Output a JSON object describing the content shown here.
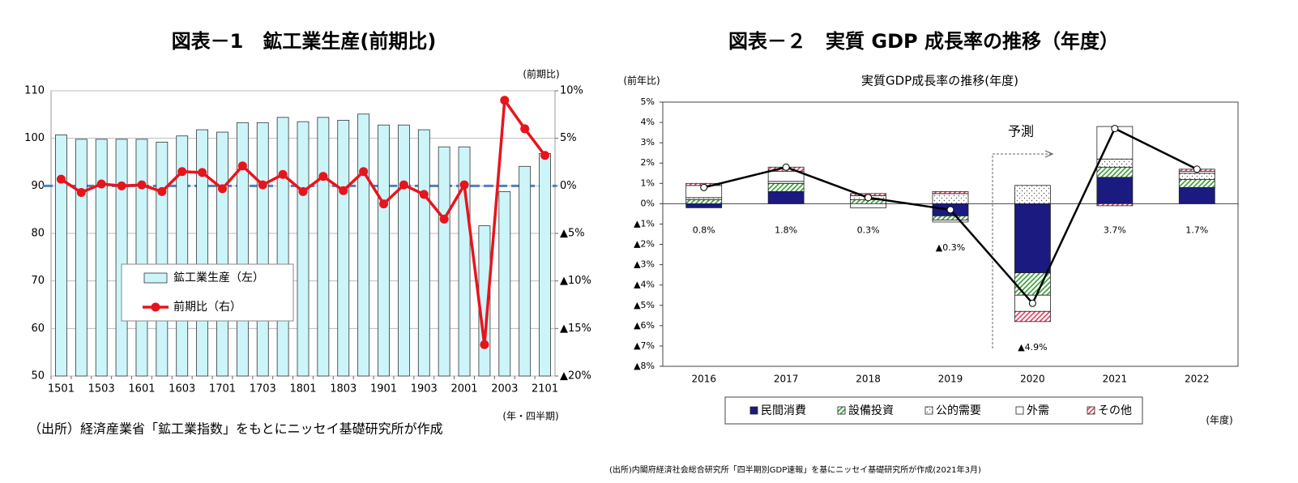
{
  "chart_data": [
    {
      "type": "combo",
      "title": "図表－1　鉱工業生産(前期比)",
      "y2_label": "(前期比)",
      "x_label": "(年・四半期)",
      "source": "（出所）経済産業省「鉱工業指数」をもとにニッセイ基礎研究所が作成",
      "categories": [
        "1501",
        null,
        "1503",
        null,
        "1601",
        null,
        "1603",
        null,
        "1701",
        null,
        "1703",
        null,
        "1801",
        null,
        "1803",
        null,
        "1901",
        null,
        "1903",
        null,
        "2001",
        null,
        "2003",
        null,
        "2101"
      ],
      "series": [
        {
          "name": "鉱工業生産（左）",
          "type": "bar",
          "color": "#ccf5fa",
          "values": [
            100.7,
            99.8,
            99.8,
            99.8,
            99.8,
            99.2,
            100.5,
            101.8,
            101.3,
            103.3,
            103.3,
            104.4,
            103.5,
            104.4,
            103.8,
            105.1,
            102.8,
            102.8,
            101.8,
            98.2,
            98.2,
            81.6,
            88.8,
            94.1,
            96.8
          ]
        },
        {
          "name": "前期比（右）",
          "type": "line",
          "axis": "y2",
          "color": "#e8141c",
          "values": [
            0.7,
            -0.7,
            0.2,
            0.0,
            0.1,
            -0.6,
            1.5,
            1.4,
            -0.3,
            2.1,
            0.1,
            1.2,
            -0.6,
            1.0,
            -0.5,
            1.5,
            -1.9,
            0.1,
            -0.9,
            -3.5,
            0.1,
            -16.7,
            9.0,
            6.0,
            3.2
          ]
        }
      ],
      "ylim": [
        50,
        110
      ],
      "yticks": [
        50,
        60,
        70,
        80,
        90,
        100,
        110
      ],
      "y2lim": [
        -20,
        10
      ],
      "y2ticks": [
        {
          "value": -20,
          "label": "▲20%"
        },
        {
          "value": -15,
          "label": "▲15%"
        },
        {
          "value": -10,
          "label": "▲10%"
        },
        {
          "value": -5,
          "label": "▲5%"
        },
        {
          "value": 0,
          "label": "0%"
        },
        {
          "value": 5,
          "label": "5%"
        },
        {
          "value": 10,
          "label": "10%"
        }
      ],
      "grid": true,
      "zero_line_color": "#4f81bd"
    },
    {
      "type": "stacked_bar",
      "title": "図表－２　実質 GDP 成長率の推移（年度）",
      "subtitle": "実質GDP成長率の推移(年度)",
      "y_label": "(前年比)",
      "x_label": "(年度)",
      "annotation": "予測",
      "source": "(出所)内閣府経済社会総合研究所「四半期別GDP速報」を基にニッセイ基礎研究所が作成(2021年3月)",
      "categories": [
        "2016",
        "2017",
        "2018",
        "2019",
        "2020",
        "2021",
        "2022"
      ],
      "series": [
        {
          "name": "民間消費",
          "color": "#1a1a80",
          "pattern": "solid",
          "values": [
            -0.2,
            0.6,
            0.0,
            -0.6,
            -3.4,
            1.3,
            0.8
          ]
        },
        {
          "name": "設備投資",
          "color": "#3a9a3a",
          "pattern": "hatch",
          "values": [
            0.2,
            0.4,
            0.2,
            -0.2,
            -1.1,
            0.5,
            0.4
          ]
        },
        {
          "name": "公的需要",
          "color": "#555555",
          "pattern": "dots",
          "values": [
            0.1,
            0.1,
            0.2,
            0.5,
            0.9,
            0.4,
            0.3
          ]
        },
        {
          "name": "外需",
          "color": "#ffffff",
          "pattern": "solid",
          "values": [
            0.6,
            0.5,
            -0.2,
            -0.1,
            -0.8,
            1.6,
            0.1
          ]
        },
        {
          "name": "その他",
          "color": "#e04060",
          "pattern": "hatch",
          "values": [
            0.1,
            0.2,
            0.1,
            0.1,
            -0.5,
            -0.1,
            0.1
          ]
        }
      ],
      "line": {
        "color": "#000000",
        "values": [
          0.8,
          1.8,
          0.3,
          -0.3,
          -4.9,
          3.7,
          1.7
        ],
        "value_labels": [
          "0.8%",
          "1.8%",
          "0.3%",
          "▲0.3%",
          "▲4.9%",
          "3.7%",
          "1.7%"
        ]
      },
      "ylim": [
        -8,
        5
      ],
      "yticks": [
        {
          "value": -8,
          "label": "▲8%"
        },
        {
          "value": -7,
          "label": "▲7%"
        },
        {
          "value": -6,
          "label": "▲6%"
        },
        {
          "value": -5,
          "label": "▲5%"
        },
        {
          "value": -4,
          "label": "▲4%"
        },
        {
          "value": -3,
          "label": "▲3%"
        },
        {
          "value": -2,
          "label": "▲2%"
        },
        {
          "value": -1,
          "label": "▲1%"
        },
        {
          "value": 0,
          "label": "0%"
        },
        {
          "value": 1,
          "label": "1%"
        },
        {
          "value": 2,
          "label": "2%"
        },
        {
          "value": 3,
          "label": "3%"
        },
        {
          "value": 4,
          "label": "4%"
        },
        {
          "value": 5,
          "label": "5%"
        }
      ]
    }
  ]
}
